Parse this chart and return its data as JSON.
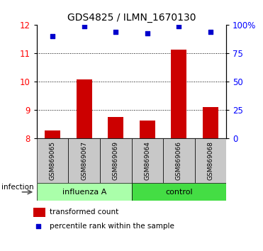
{
  "title": "GDS4825 / ILMN_1670130",
  "samples": [
    "GSM869065",
    "GSM869067",
    "GSM869069",
    "GSM869064",
    "GSM869066",
    "GSM869068"
  ],
  "bar_values": [
    8.28,
    10.07,
    8.75,
    8.62,
    11.12,
    9.1
  ],
  "percentile_values": [
    90,
    99,
    94,
    93,
    99,
    94
  ],
  "bar_color": "#cc0000",
  "dot_color": "#0000cc",
  "ylim_left": [
    8,
    12
  ],
  "ylim_right": [
    0,
    100
  ],
  "yticks_left": [
    8,
    9,
    10,
    11,
    12
  ],
  "yticks_right": [
    0,
    25,
    50,
    75,
    100
  ],
  "yticklabels_right": [
    "0",
    "25",
    "50",
    "75",
    "100%"
  ],
  "group_labels": [
    "influenza A",
    "control"
  ],
  "group_colors": [
    "#aaffaa",
    "#44dd44"
  ],
  "group_ranges": [
    [
      0,
      3
    ],
    [
      3,
      6
    ]
  ],
  "infection_label": "infection",
  "legend_entries": [
    "transformed count",
    "percentile rank within the sample"
  ],
  "bar_width": 0.5,
  "sample_box_color": "#c8c8c8",
  "title_fontsize": 10
}
